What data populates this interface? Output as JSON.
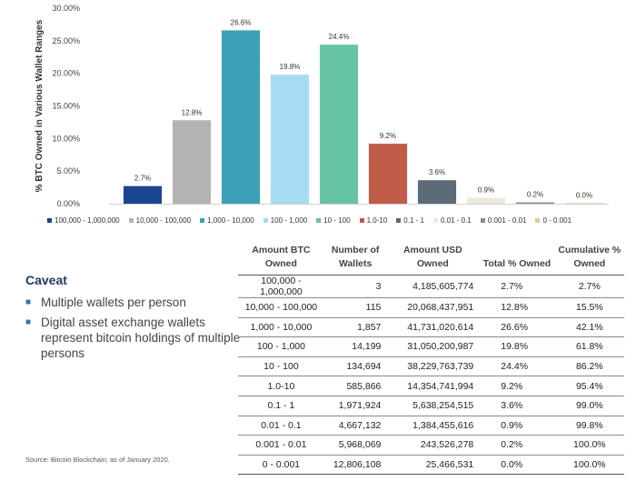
{
  "chart_data": {
    "type": "bar",
    "ylabel": "% BTC Owned in Various Wallet Ranges",
    "ylim": [
      0,
      30
    ],
    "yticks": [
      "0.00%",
      "5.00%",
      "10.00%",
      "15.00%",
      "20.00%",
      "25.00%",
      "30.00%"
    ],
    "grid": false,
    "legend_position": "bottom",
    "categories": [
      "100,000 - 1,000,000",
      "10,000 - 100,000",
      "1,000 - 10,000",
      "100 - 1,000",
      "10 - 100",
      "1.0-10",
      "0.1 - 1",
      "0.01 - 0.1",
      "0.001 - 0.01",
      "0 - 0.001"
    ],
    "values": [
      2.7,
      12.8,
      26.6,
      19.8,
      24.4,
      9.2,
      3.6,
      0.9,
      0.2,
      0.0
    ],
    "data_labels": [
      "2.7%",
      "12.8%",
      "26.6%",
      "19.8%",
      "24.4%",
      "9.2%",
      "3.6%",
      "0.9%",
      "0.2%",
      "0.0%"
    ],
    "colors": [
      "#1a4691",
      "#b3b3b3",
      "#3aa1b8",
      "#a6dcf3",
      "#66c4a4",
      "#c05b48",
      "#5c6b78",
      "#ede8dc",
      "#8c8c8c",
      "#e3c99a"
    ]
  },
  "caveat": {
    "title": "Caveat",
    "items": [
      "Multiple wallets per person",
      "Digital asset exchange wallets represent bitcoin holdings of multiple persons"
    ]
  },
  "source": "Source: Bitcoin Blockchain; as of January 2020.",
  "table": {
    "headers": [
      "Amount BTC Owned",
      "Number of Wallets",
      "Amount USD Owned",
      "Total % Owned",
      "Cumulative % Owned"
    ],
    "rows": [
      [
        "100,000 - 1,000,000",
        "3",
        "4,185,605,774",
        "2.7%",
        "2.7%"
      ],
      [
        "10,000 - 100,000",
        "115",
        "20,068,437,951",
        "12.8%",
        "15.5%"
      ],
      [
        "1,000 - 10,000",
        "1,857",
        "41,731,020,614",
        "26.6%",
        "42.1%"
      ],
      [
        "100 - 1,000",
        "14,199",
        "31,050,200,987",
        "19.8%",
        "61.8%"
      ],
      [
        "10 - 100",
        "134,694",
        "38,229,763,739",
        "24.4%",
        "86.2%"
      ],
      [
        "1.0-10",
        "585,866",
        "14,354,741,994",
        "9.2%",
        "95.4%"
      ],
      [
        "0.1 - 1",
        "1,971,924",
        "5,638,254,515",
        "3.6%",
        "99.0%"
      ],
      [
        "0.01 - 0.1",
        "4,667,132",
        "1,384,455,616",
        "0.9%",
        "99.8%"
      ],
      [
        "0.001 - 0.01",
        "5,968,069",
        "243,526,278",
        "0.2%",
        "100.0%"
      ],
      [
        "0 - 0.001",
        "12,806,108",
        "25,466,531",
        "0.0%",
        "100.0%"
      ]
    ]
  }
}
